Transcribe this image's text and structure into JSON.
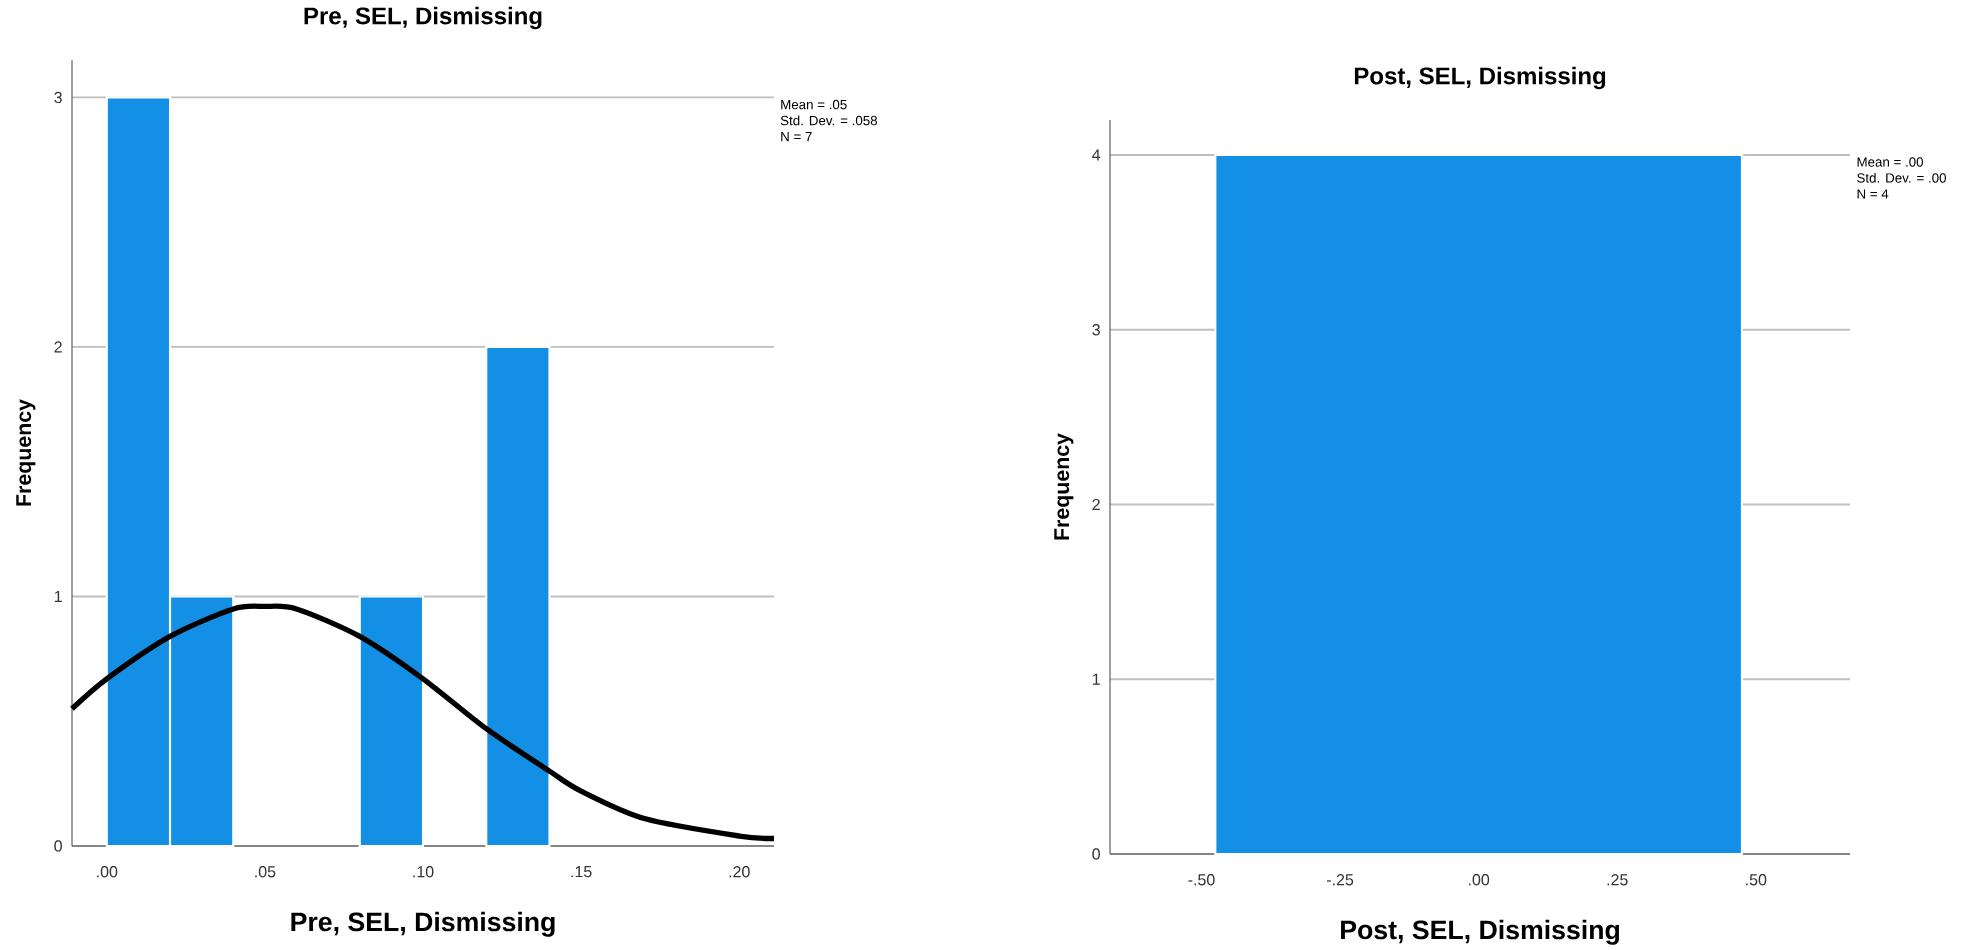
{
  "chart_data": [
    {
      "type": "histogram",
      "title": "Pre, SEL, Dismissing",
      "xlabel": "Pre, SEL, Dismissing",
      "ylabel": "Frequency",
      "bins": [
        0,
        0.02,
        0.04,
        0.06,
        0.08,
        0.1,
        0.12,
        0.14
      ],
      "values": [
        3,
        1,
        0,
        0,
        1,
        0,
        2
      ],
      "color": "#1390e6",
      "series": [
        {
          "type": "line",
          "color": "#000000",
          "x": [
            -0.011,
            0.0,
            0.02,
            0.04,
            0.05,
            0.06,
            0.08,
            0.1,
            0.12,
            0.14,
            0.15,
            0.17,
            0.2,
            0.211
          ],
          "values": [
            0.55,
            0.67,
            0.84,
            0.95,
            0.96,
            0.95,
            0.84,
            0.67,
            0.47,
            0.3,
            0.22,
            0.11,
            0.04,
            0.03
          ]
        }
      ],
      "xlim": [
        -0.011,
        0.211
      ],
      "ylim": [
        0,
        3.15
      ],
      "xticks": [
        {
          "value": 0,
          "label": ".00"
        },
        {
          "value": 0.05,
          "label": ".05"
        },
        {
          "value": 0.1,
          "label": ".10"
        },
        {
          "value": 0.15,
          "label": ".15"
        },
        {
          "value": 0.2,
          "label": ".20"
        }
      ],
      "yticks": [
        0,
        1,
        2,
        3
      ],
      "grid": "y",
      "annotations": [
        "Mean = .05",
        "Std. Dev. = .058",
        "N = 7"
      ]
    },
    {
      "type": "histogram",
      "title": "Post, SEL, Dismissing",
      "xlabel": "Post, SEL, Dismissing",
      "ylabel": "Frequency",
      "bins": [
        -0.475,
        0.475
      ],
      "values": [
        4
      ],
      "color": "#1390e6",
      "xlim": [
        -0.665,
        0.67
      ],
      "ylim": [
        0,
        4.2
      ],
      "xticks": [
        {
          "value": -0.5,
          "label": "-.50"
        },
        {
          "value": -0.25,
          "label": "-.25"
        },
        {
          "value": 0,
          "label": ".00"
        },
        {
          "value": 0.25,
          "label": ".25"
        },
        {
          "value": 0.5,
          "label": ".50"
        }
      ],
      "yticks": [
        0,
        1,
        2,
        3,
        4
      ],
      "grid": "y",
      "annotations": [
        "Mean = .00",
        "Std. Dev. = .00",
        "N = 4"
      ]
    }
  ]
}
